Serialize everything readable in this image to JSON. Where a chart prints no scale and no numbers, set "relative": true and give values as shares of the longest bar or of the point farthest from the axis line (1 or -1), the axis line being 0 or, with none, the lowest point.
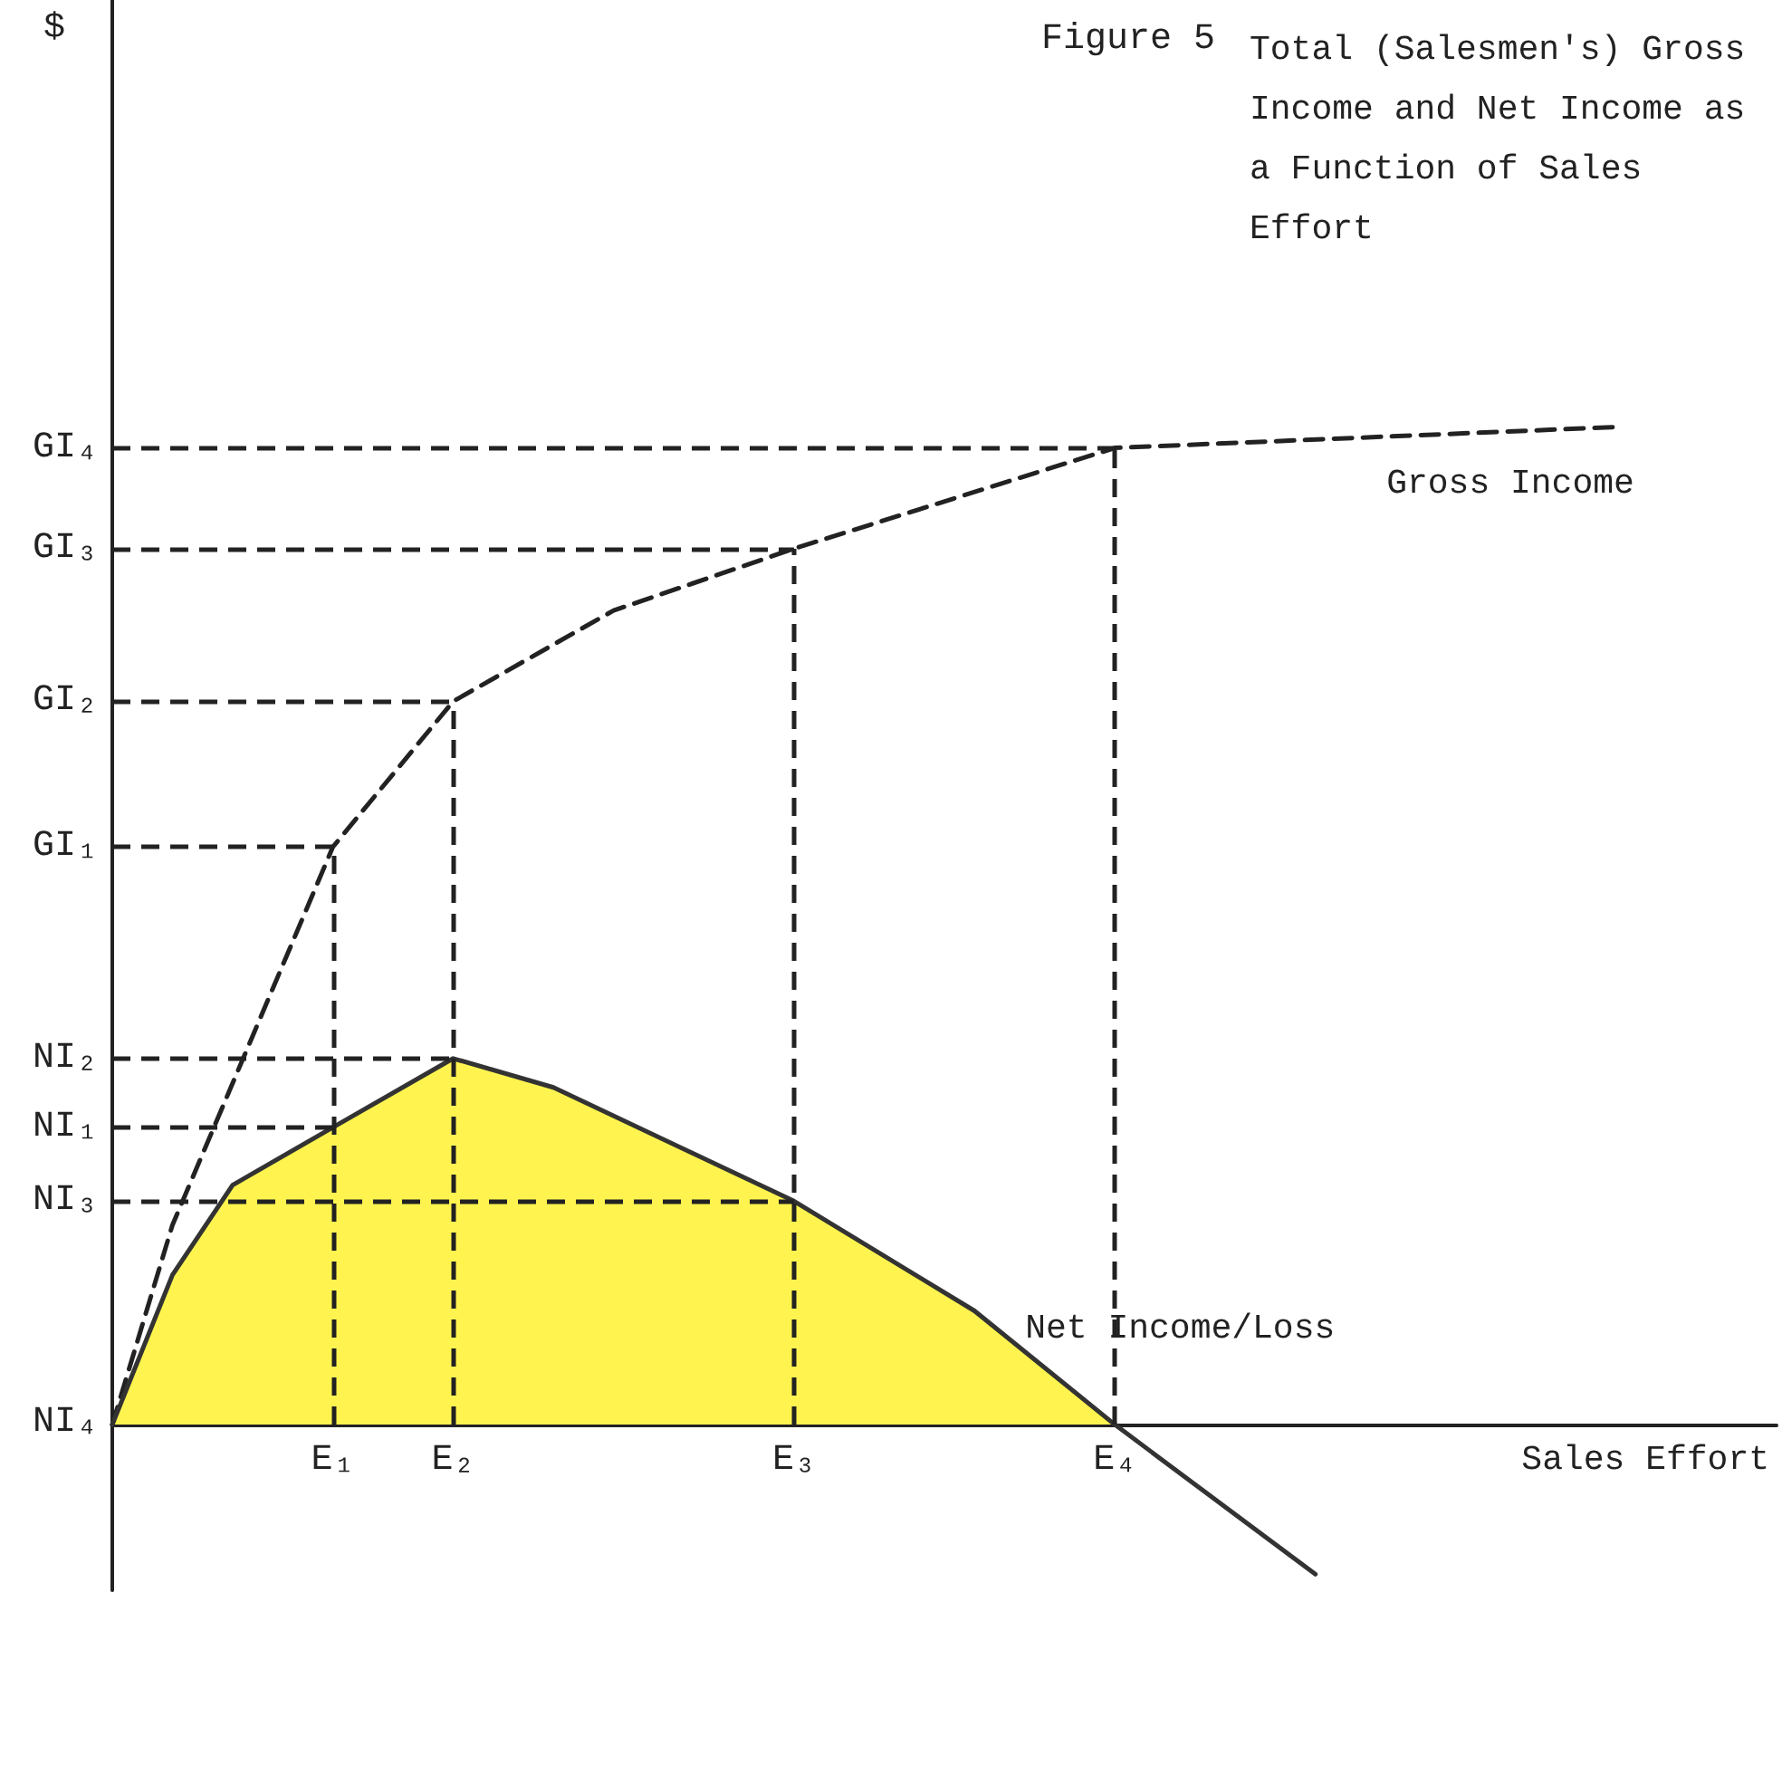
{
  "chart_data": {
    "type": "line",
    "relative": true,
    "title": "Total (Salesmen's) Gross Income and Net Income as a Function of Sales Effort",
    "xlabel": "Sales Effort",
    "marker": "none",
    "grid": "x",
    "annotations": [
      "Figure 5",
      "$",
      "NI₄",
      {
        "text": "GI₁",
        "x": "E₁",
        "y": 0.579
      },
      {
        "text": "GI₂",
        "x": "E₂",
        "y": 0.725
      },
      {
        "text": "GI₃",
        "x": "E₃",
        "y": 0.878
      },
      {
        "text": "GI₄",
        "x": "E₄",
        "y": 0.979
      },
      {
        "text": "NI₁",
        "x": "E₁",
        "y": 0.298
      },
      {
        "text": "NI₂",
        "x": "E₂",
        "y": 0.367
      },
      {
        "text": "NI₃",
        "x": "E₃",
        "y": 0.224
      }
    ],
    "categories": [
      null,
      null,
      null,
      null,
      null,
      null,
      null,
      null,
      null,
      null,
      null,
      "E₁",
      null,
      null,
      null,
      null,
      null,
      "E₂",
      null,
      null,
      null,
      null,
      null,
      null,
      null,
      null,
      null,
      null,
      null,
      null,
      null,
      null,
      null,
      null,
      "E₃",
      null,
      null,
      null,
      null,
      null,
      null,
      null,
      null,
      null,
      null,
      null,
      null,
      null,
      null,
      null,
      "E₄",
      null,
      null,
      null,
      null,
      null,
      null,
      null,
      null,
      null,
      null,
      null,
      null,
      null,
      null,
      null,
      null,
      null,
      null,
      null,
      null,
      null,
      null,
      null,
      null,
      null,
      null,
      null,
      null,
      null,
      null,
      null,
      null,
      null
    ],
    "series": [
      {
        "type": "area",
        "color": "#fff44f",
        "values": [
          0,
          null,
          null,
          0.15,
          null,
          null,
          0.24,
          null,
          null,
          null,
          null,
          0.298,
          null,
          null,
          null,
          null,
          null,
          0.367,
          null,
          null,
          null,
          null,
          0.338,
          null,
          null,
          null,
          null,
          null,
          null,
          null,
          null,
          null,
          null,
          null,
          0.224,
          null,
          null,
          null,
          null,
          null,
          null,
          null,
          null,
          0.114,
          null,
          null,
          null,
          null,
          null,
          null,
          0,
          null,
          null,
          null,
          null,
          null,
          null,
          null,
          null,
          null,
          null,
          null,
          null,
          null,
          null,
          null,
          null,
          null,
          null,
          null,
          null,
          null,
          null,
          null,
          null,
          null,
          null,
          null,
          null,
          null,
          null,
          null,
          null,
          null
        ]
      },
      {
        "name": "Gross Income",
        "color": "#222222",
        "line_style": "dashed",
        "values": [
          0,
          null,
          null,
          0.2,
          null,
          null,
          null,
          null,
          null,
          null,
          null,
          0.579,
          null,
          null,
          null,
          null,
          null,
          0.725,
          null,
          null,
          null,
          null,
          null,
          null,
          null,
          0.816,
          null,
          null,
          null,
          null,
          null,
          null,
          null,
          null,
          0.878,
          null,
          null,
          null,
          null,
          null,
          null,
          null,
          null,
          null,
          null,
          null,
          null,
          null,
          null,
          null,
          0.979,
          null,
          null,
          null,
          null,
          null,
          null,
          null,
          null,
          null,
          null,
          null,
          null,
          null,
          null,
          null,
          null,
          null,
          null,
          null,
          null,
          null,
          null,
          null,
          null,
          1.0,
          null,
          null,
          null,
          null,
          null,
          null,
          null,
          null
        ]
      },
      {
        "name": "Net Income/Loss",
        "color": "#333333",
        "line_style": "solid",
        "values": [
          0,
          null,
          null,
          0.15,
          null,
          null,
          0.24,
          null,
          null,
          null,
          null,
          0.298,
          null,
          null,
          null,
          null,
          null,
          0.367,
          null,
          null,
          null,
          null,
          0.338,
          null,
          null,
          null,
          null,
          null,
          null,
          null,
          null,
          null,
          null,
          null,
          0.224,
          null,
          null,
          null,
          null,
          null,
          null,
          null,
          null,
          0.114,
          null,
          null,
          null,
          null,
          null,
          null,
          0,
          null,
          null,
          null,
          null,
          null,
          null,
          null,
          null,
          null,
          -0.15,
          null,
          null,
          null,
          null,
          null,
          null,
          null,
          null,
          null,
          null,
          null,
          null,
          null,
          null,
          null,
          null,
          null,
          null,
          null,
          null,
          null,
          null,
          null
        ]
      }
    ]
  }
}
